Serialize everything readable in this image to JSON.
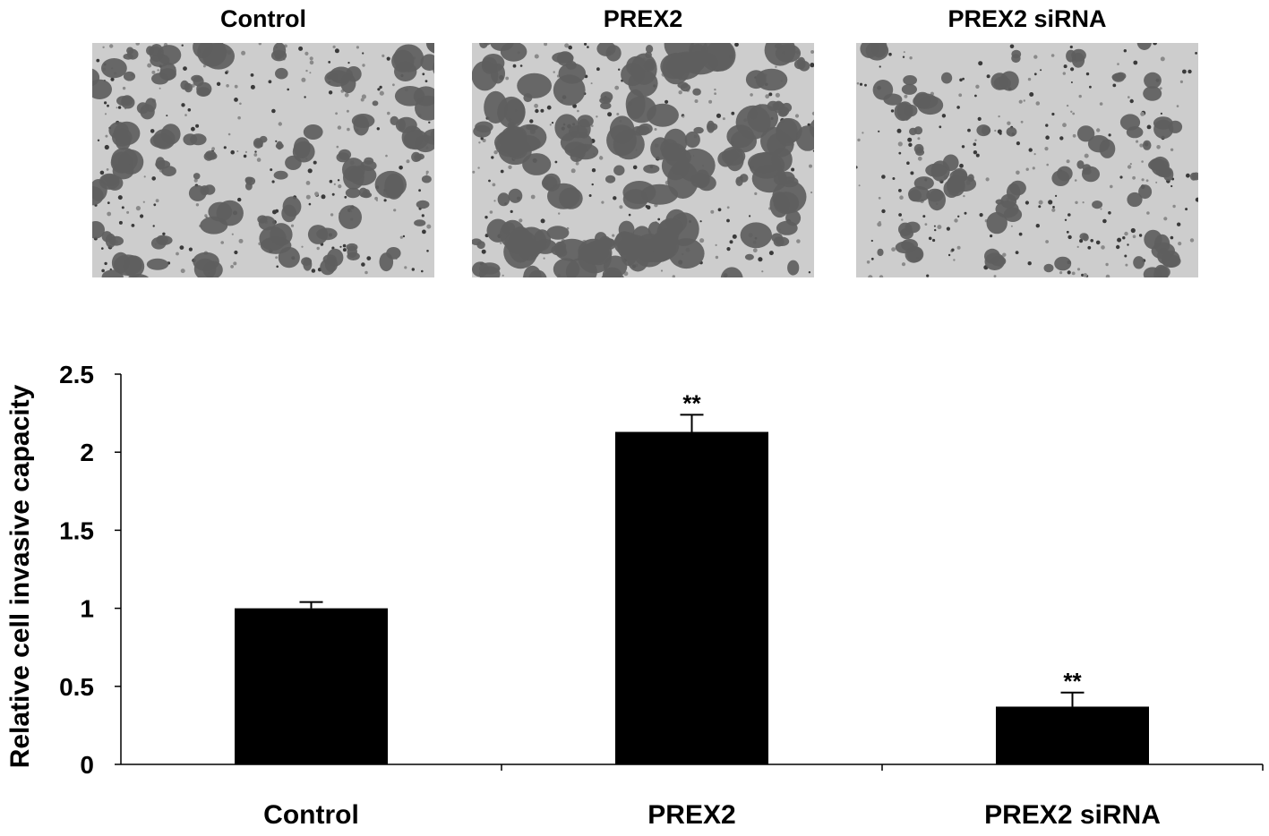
{
  "panels": [
    {
      "label": "Control",
      "density": 0.55
    },
    {
      "label": "PREX2",
      "density": 0.95
    },
    {
      "label": "PREX2 siRNA",
      "density": 0.25
    }
  ],
  "chart_data": {
    "type": "bar",
    "categories": [
      "Control",
      "PREX2",
      "PREX2 siRNA"
    ],
    "values": [
      1.0,
      2.13,
      0.37
    ],
    "errors": [
      0.04,
      0.11,
      0.09
    ],
    "annotations": [
      "",
      "**",
      "**"
    ],
    "ylabel": "Relative cell invasive capacity",
    "ylim": [
      0,
      2.5
    ],
    "yticks": [
      0,
      0.5,
      1,
      1.5,
      2,
      2.5
    ],
    "ytick_labels": [
      "0",
      "0.5",
      "1",
      "1.5",
      "2",
      "2.5"
    ],
    "bar_color": "#000000",
    "grid": false
  }
}
